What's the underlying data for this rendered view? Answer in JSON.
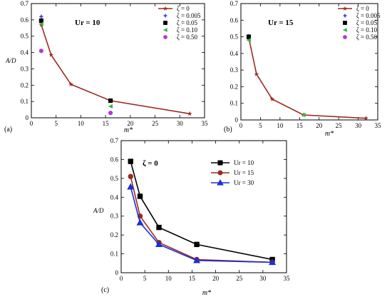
{
  "chart_data": [
    {
      "id": "a",
      "type": "line",
      "panel_label": "(a)",
      "annotation": "Ur = 10",
      "ylabel": "A/D",
      "xlabel": "m*",
      "xlim": [
        0,
        35
      ],
      "ylim": [
        0,
        0.7
      ],
      "xticks": [
        0,
        5,
        10,
        15,
        20,
        25,
        30,
        35
      ],
      "xtick_labels": [
        "0",
        "5",
        "10",
        "15",
        "20",
        "25",
        "30",
        "35"
      ],
      "yticks": [
        0,
        0.1,
        0.2,
        0.3,
        0.4,
        0.5,
        0.6,
        0.7
      ],
      "ytick_labels": [
        "0",
        "0.1",
        "0.2",
        "0.3",
        "0.4",
        "0.5",
        "0.6",
        "0.7"
      ],
      "legend_position": "top-right",
      "series": [
        {
          "name": "ζ = 0",
          "marker": "star",
          "color": "#9b2a1f",
          "line": true,
          "x": [
            2,
            4,
            8,
            16,
            32
          ],
          "y": [
            0.57,
            0.385,
            0.205,
            0.105,
            0.025
          ]
        },
        {
          "name": "ζ = 0.005",
          "marker": "plus",
          "color": "#2f3bd6",
          "line": false,
          "x": [
            2
          ],
          "y": [
            0.62
          ]
        },
        {
          "name": "ζ = 0.05",
          "marker": "square",
          "color": "#000000",
          "line": false,
          "x": [
            2,
            16
          ],
          "y": [
            0.595,
            0.105
          ]
        },
        {
          "name": "ζ = 0.10",
          "marker": "triangle-left",
          "color": "#33b24a",
          "line": false,
          "x": [
            2,
            16
          ],
          "y": [
            0.575,
            0.07
          ]
        },
        {
          "name": "ζ = 0.50",
          "marker": "circle",
          "color": "#b23ad6",
          "line": false,
          "x": [
            2,
            16
          ],
          "y": [
            0.41,
            0.03
          ]
        }
      ]
    },
    {
      "id": "b",
      "type": "line",
      "panel_label": "(b)",
      "annotation": "Ur = 15",
      "ylabel": "",
      "xlabel": "m*",
      "xlim": [
        0,
        35
      ],
      "ylim": [
        0,
        0.7
      ],
      "xticks": [
        0,
        5,
        10,
        15,
        20,
        25,
        30,
        35
      ],
      "xtick_labels": [
        "0",
        "5",
        "10",
        "15",
        "20",
        "25",
        "30",
        "35"
      ],
      "yticks": [
        0,
        0.1,
        0.2,
        0.3,
        0.4,
        0.5,
        0.6,
        0.7
      ],
      "ytick_labels": [
        "0",
        "0.1",
        "0.2",
        "0.3",
        "0.4",
        "0.5",
        "0.6",
        "0.7"
      ],
      "legend_position": "top-right",
      "series": [
        {
          "name": "ζ = 0",
          "marker": "star",
          "color": "#9b2a1f",
          "line": true,
          "x": [
            2,
            4,
            8,
            16,
            32
          ],
          "y": [
            0.495,
            0.275,
            0.125,
            0.03,
            0.01
          ]
        },
        {
          "name": "ζ = 0.005",
          "marker": "plus",
          "color": "#2f3bd6",
          "line": false,
          "x": [
            2
          ],
          "y": [
            0.505
          ]
        },
        {
          "name": "ζ = 0.05",
          "marker": "square",
          "color": "#000000",
          "line": false,
          "x": [
            2
          ],
          "y": [
            0.5
          ]
        },
        {
          "name": "ζ = 0.10",
          "marker": "triangle-left",
          "color": "#33b24a",
          "line": false,
          "x": [
            2,
            16
          ],
          "y": [
            0.48,
            0.03
          ]
        },
        {
          "name": "ζ = 0.50",
          "marker": "circle",
          "color": "#b23ad6",
          "line": false,
          "x": [],
          "y": []
        }
      ]
    },
    {
      "id": "c",
      "type": "line",
      "panel_label": "(c)",
      "annotation": "ζ = 0",
      "ylabel": "A/D",
      "xlabel": "m*",
      "xlim": [
        0,
        35
      ],
      "ylim": [
        0,
        0.7
      ],
      "xticks": [
        0,
        5,
        10,
        15,
        20,
        25,
        30,
        35
      ],
      "xtick_labels": [
        "0",
        "5",
        "10",
        "15",
        "20",
        "25",
        "30",
        "35"
      ],
      "yticks": [
        0,
        0.1,
        0.2,
        0.3,
        0.4,
        0.5,
        0.6,
        0.7
      ],
      "ytick_labels": [
        "0",
        "0.1",
        "0.2",
        "0.3",
        "0.4",
        "0.5",
        "0.6",
        "0.7"
      ],
      "legend_position": "top-right",
      "series": [
        {
          "name": "Ur = 10",
          "marker": "square",
          "color": "#000000",
          "line": true,
          "x": [
            2,
            4,
            8,
            16,
            32
          ],
          "y": [
            0.59,
            0.405,
            0.24,
            0.15,
            0.07
          ]
        },
        {
          "name": "Ur = 15",
          "marker": "circle",
          "color": "#9b2a1f",
          "line": true,
          "x": [
            2,
            4,
            8,
            16,
            32
          ],
          "y": [
            0.51,
            0.3,
            0.16,
            0.07,
            0.055
          ]
        },
        {
          "name": "Ur = 30",
          "marker": "triangle-up",
          "color": "#1d2fd6",
          "line": true,
          "x": [
            2,
            4,
            8,
            16,
            32
          ],
          "y": [
            0.455,
            0.265,
            0.15,
            0.065,
            0.055
          ]
        }
      ]
    }
  ]
}
